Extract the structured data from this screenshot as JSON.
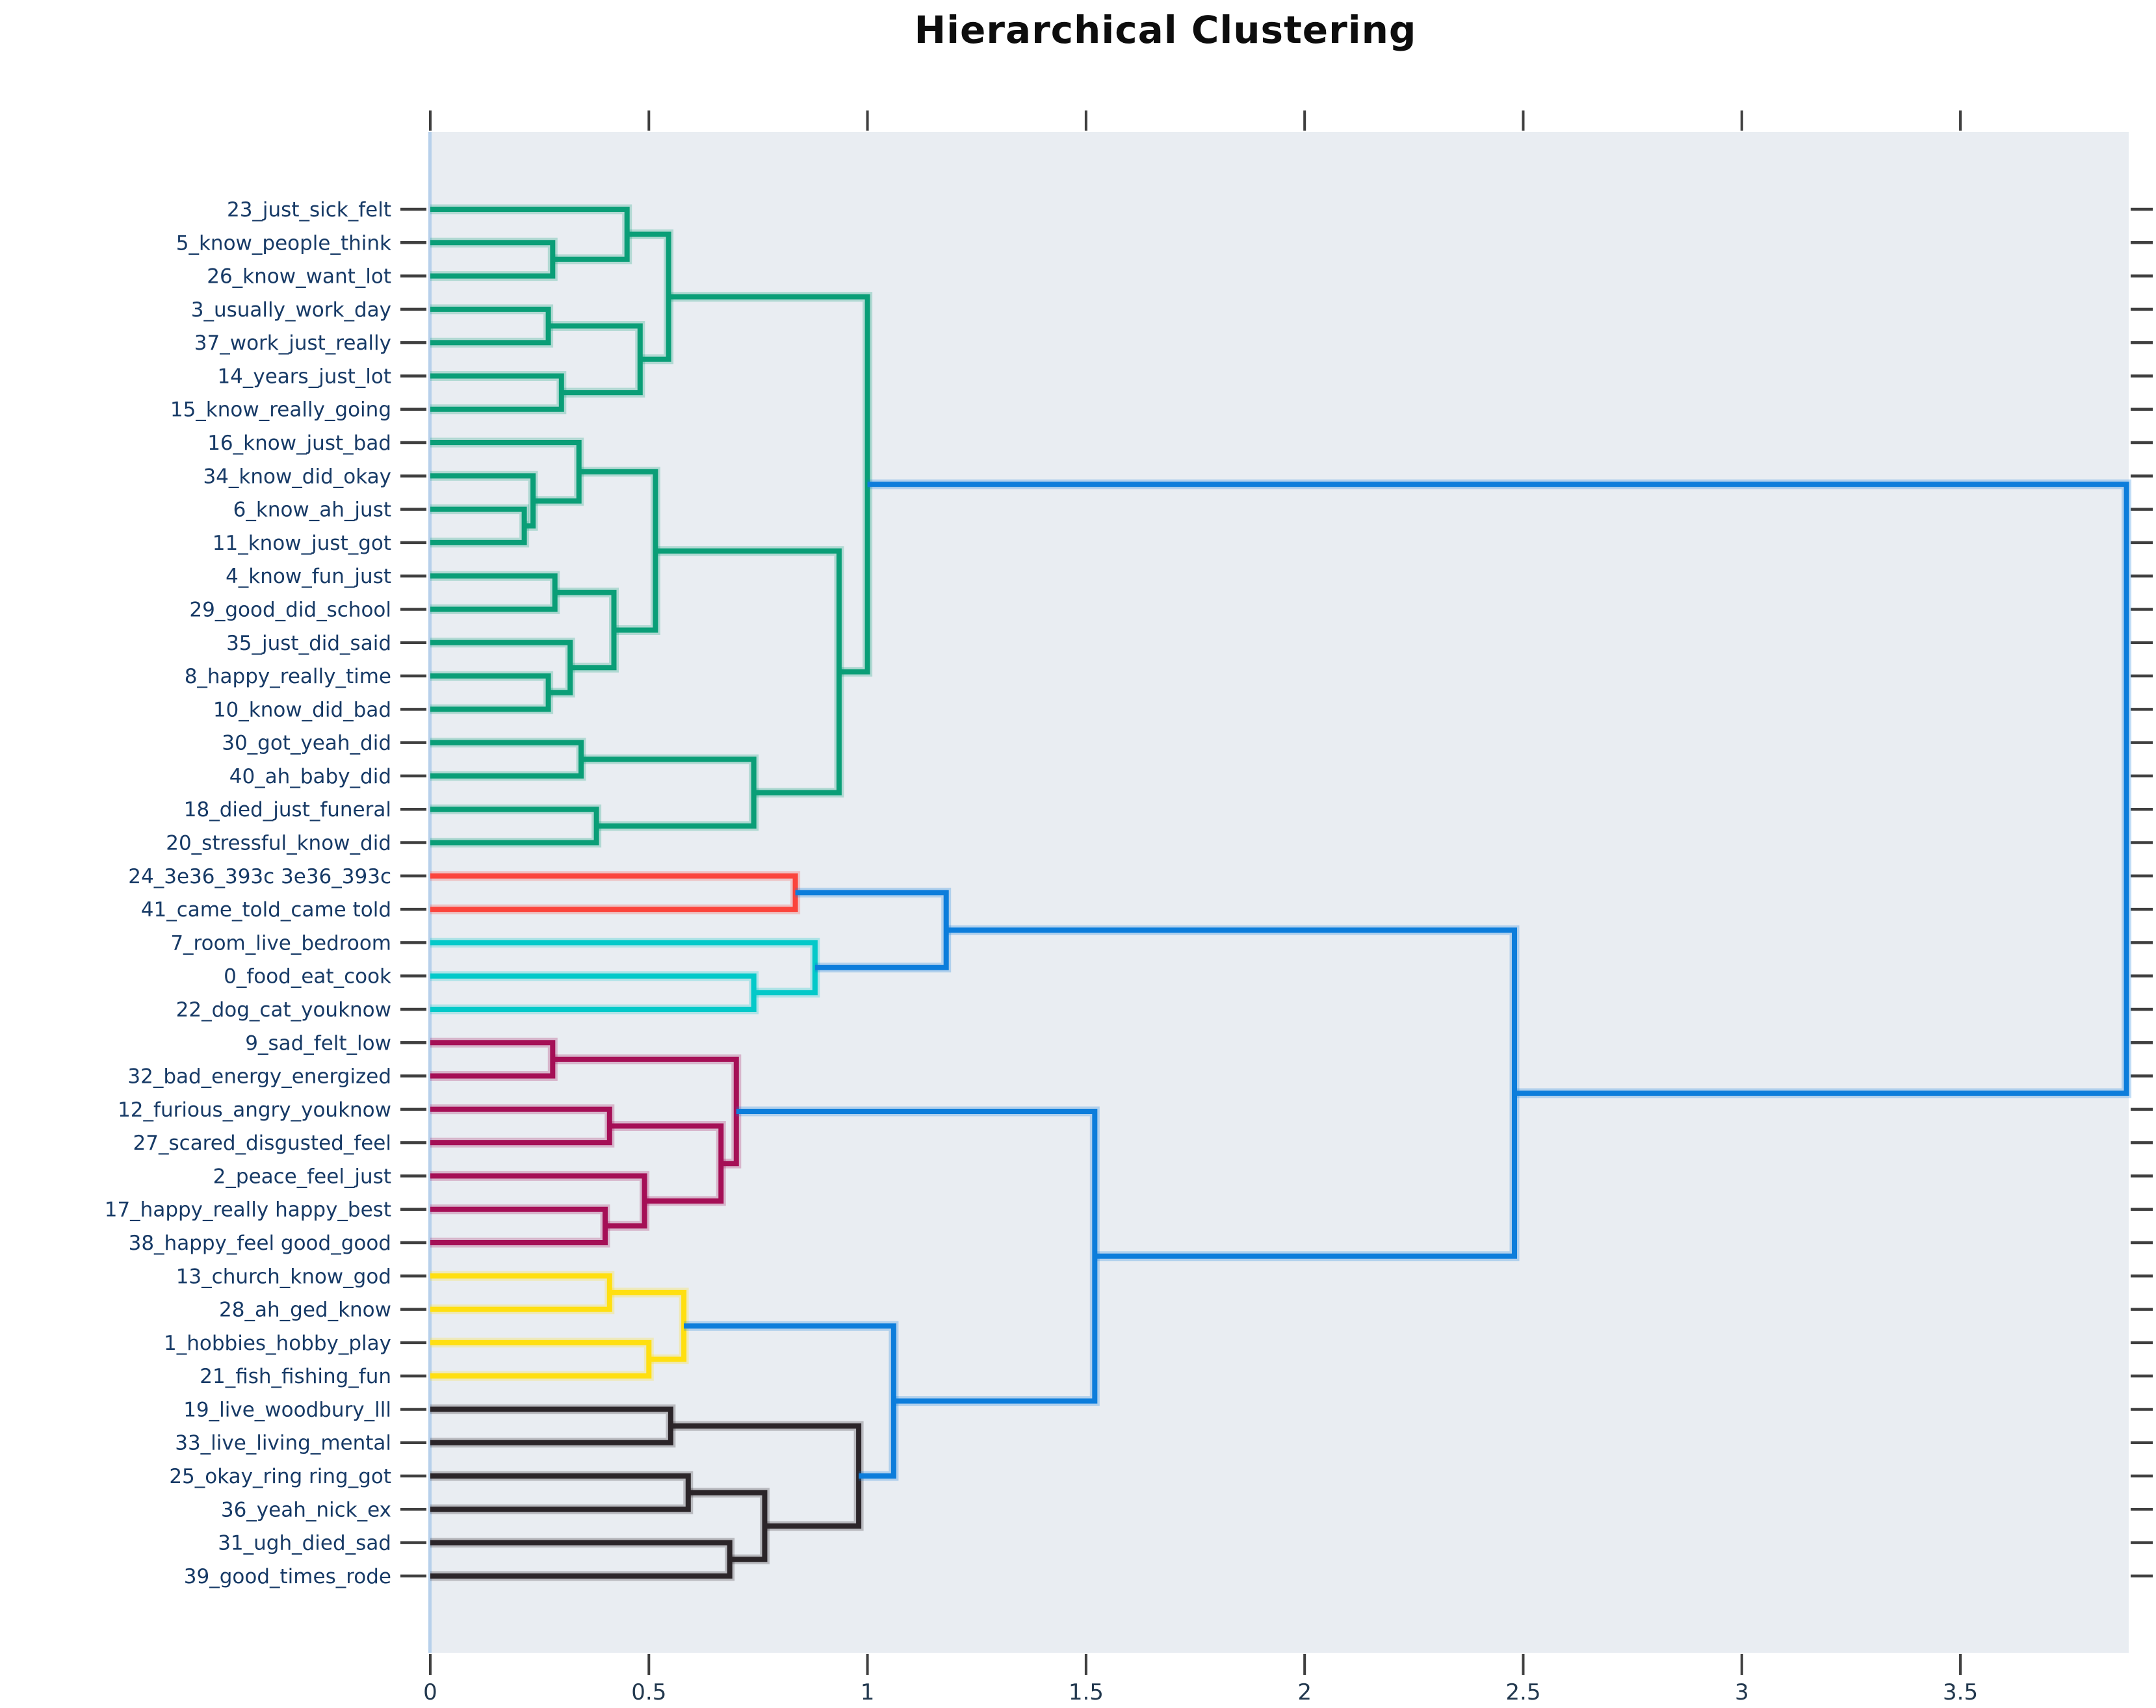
{
  "chart_data": {
    "type": "dendrogram",
    "title": "Hierarchical Clustering",
    "orientation": "leaves-left-root-right",
    "xlabel": "",
    "ylabel": "",
    "grid": false,
    "legend": "none",
    "xlim": [
      0,
      3.885
    ],
    "x_ticks": [
      0,
      0.5,
      1,
      1.5,
      2,
      2.5,
      3,
      3.5
    ],
    "x_tick_labels": [
      "0",
      "0.5",
      "1",
      "1.5",
      "2",
      "2.5",
      "3",
      "3.5"
    ],
    "leaves": [
      "23_just_sick_felt",
      "5_know_people_think",
      "26_know_want_lot",
      "3_usually_work_day",
      "37_work_just_really",
      "14_years_just_lot",
      "15_know_really_going",
      "16_know_just_bad",
      "34_know_did_okay",
      "6_know_ah_just",
      "11_know_just_got",
      "4_know_fun_just",
      "29_good_did_school",
      "35_just_did_said",
      "8_happy_really_time",
      "10_know_did_bad",
      "30_got_yeah_did",
      "40_ah_baby_did",
      "18_died_just_funeral",
      "20_stressful_know_did",
      "24_3e36_393c 3e36_393c",
      "41_came_told_came told",
      "7_room_live_bedroom",
      "0_food_eat_cook",
      "22_dog_cat_youknow",
      "9_sad_felt_low",
      "32_bad_energy_energized",
      "12_furious_angry_youknow",
      "27_scared_disgusted_feel",
      "2_peace_feel_just",
      "17_happy_really happy_best",
      "38_happy_feel good_good",
      "13_church_know_god",
      "28_ah_ged_know",
      "1_hobbies_hobby_play",
      "21_fish_fishing_fun",
      "19_live_woodbury_lll",
      "33_live_living_mental",
      "25_okay_ring ring_got",
      "36_yeah_nick_ex",
      "31_ugh_died_sad",
      "39_good_times_rode"
    ],
    "merges": [
      [
        1,
        2,
        0.28,
        "green"
      ],
      [
        0,
        42,
        0.45,
        "green"
      ],
      [
        3,
        4,
        0.27,
        "green"
      ],
      [
        5,
        6,
        0.3,
        "green"
      ],
      [
        44,
        45,
        0.48,
        "green"
      ],
      [
        43,
        46,
        0.545,
        "green"
      ],
      [
        9,
        10,
        0.215,
        "green"
      ],
      [
        8,
        48,
        0.235,
        "green"
      ],
      [
        7,
        49,
        0.34,
        "green"
      ],
      [
        11,
        12,
        0.285,
        "green"
      ],
      [
        14,
        15,
        0.27,
        "green"
      ],
      [
        13,
        52,
        0.32,
        "green"
      ],
      [
        51,
        53,
        0.42,
        "green"
      ],
      [
        50,
        54,
        0.515,
        "green"
      ],
      [
        16,
        17,
        0.345,
        "green"
      ],
      [
        18,
        19,
        0.38,
        "green"
      ],
      [
        56,
        57,
        0.74,
        "green"
      ],
      [
        55,
        58,
        0.935,
        "green"
      ],
      [
        47,
        59,
        1.0,
        "green"
      ],
      [
        20,
        21,
        0.835,
        "red"
      ],
      [
        23,
        24,
        0.74,
        "cyan"
      ],
      [
        22,
        62,
        0.88,
        "cyan"
      ],
      [
        61,
        63,
        1.18,
        "blue"
      ],
      [
        25,
        26,
        0.28,
        "maroon"
      ],
      [
        27,
        28,
        0.41,
        "maroon"
      ],
      [
        30,
        31,
        0.4,
        "maroon"
      ],
      [
        29,
        67,
        0.49,
        "maroon"
      ],
      [
        66,
        68,
        0.665,
        "maroon"
      ],
      [
        65,
        69,
        0.7,
        "maroon"
      ],
      [
        32,
        33,
        0.41,
        "yellow"
      ],
      [
        34,
        35,
        0.5,
        "yellow"
      ],
      [
        71,
        72,
        0.58,
        "yellow"
      ],
      [
        36,
        37,
        0.55,
        "black"
      ],
      [
        38,
        39,
        0.59,
        "black"
      ],
      [
        40,
        41,
        0.685,
        "black"
      ],
      [
        75,
        76,
        0.765,
        "black"
      ],
      [
        74,
        77,
        0.98,
        "black"
      ],
      [
        73,
        78,
        1.06,
        "blue"
      ],
      [
        70,
        79,
        1.52,
        "blue"
      ],
      [
        64,
        80,
        2.48,
        "blue"
      ],
      [
        60,
        81,
        3.88,
        "blue"
      ]
    ],
    "colors": {
      "green": "#0a9e77",
      "red": "#fb443c",
      "cyan": "#03c9c9",
      "maroon": "#a50f56",
      "yellow": "#ffdf10",
      "black": "#2b2529",
      "blue": "#0c7ddb",
      "plot_bg": "#e9edf2",
      "left_spine": "#b7d0eb",
      "leaf_label": "#173a66",
      "axis_label": "#22384e",
      "tick": "#3f3f3f",
      "title": "#0d0d0d"
    }
  }
}
